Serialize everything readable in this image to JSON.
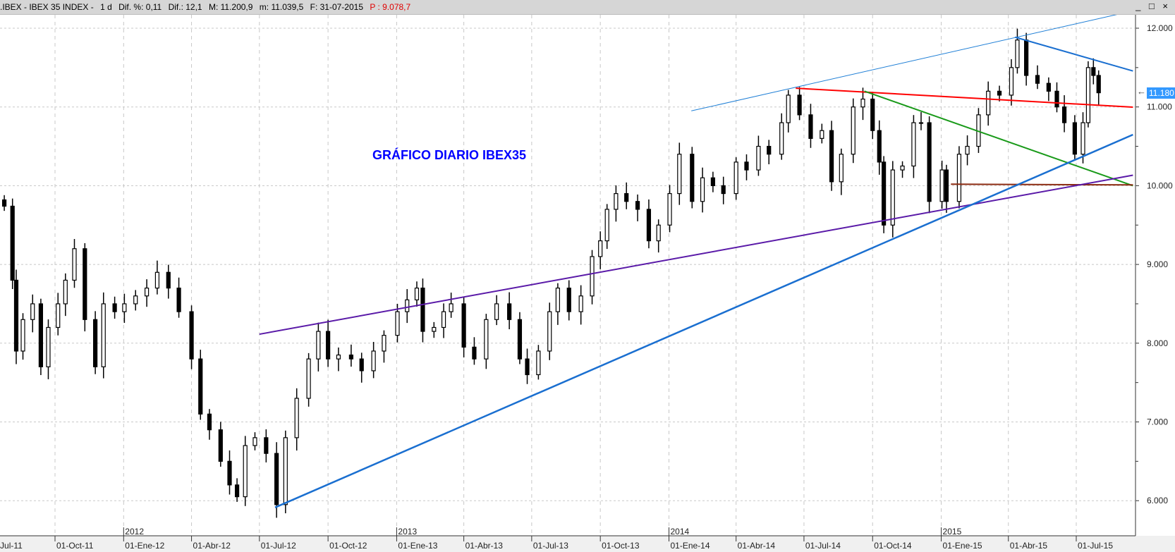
{
  "header": {
    "symbol": ".IBEX - IBEX 35 INDEX -",
    "period": "1 d",
    "change_pct": "Dif. %: 0,11",
    "change": "Dif.: 12,1",
    "high": "M: 11.200,9",
    "low": "m: 11.039,5",
    "date": "F: 31-07-2015",
    "p_value": "P : 9.078,7",
    "window_controls": "_ □ ×"
  },
  "colors": {
    "up_candle": "#ffffff",
    "down_candle": "#000000",
    "price_tag": "#3399ff",
    "caption": "#0000ff",
    "p_value": "#e00000"
  },
  "chart_data": {
    "type": "candlestick",
    "title": "GRÁFICO DIARIO IBEX35",
    "ylim": [
      5700,
      12300
    ],
    "y_ticks": [
      "6.000",
      "7.000",
      "8.000",
      "9.000",
      "10.000",
      "11.000",
      "12.000"
    ],
    "y_tick_values": [
      6000,
      7000,
      8000,
      9000,
      10000,
      11000,
      12000
    ],
    "x_ticks": [
      {
        "date": "2011-07-01",
        "label": "01-Jul-11"
      },
      {
        "date": "2011-10-01",
        "label": "01-Oct-11"
      },
      {
        "date": "2012-01-01",
        "label": "01-Ene-12"
      },
      {
        "date": "2012-04-01",
        "label": "01-Abr-12"
      },
      {
        "date": "2012-07-01",
        "label": "01-Jul-12"
      },
      {
        "date": "2012-10-01",
        "label": "01-Oct-12"
      },
      {
        "date": "2013-01-01",
        "label": "01-Ene-13"
      },
      {
        "date": "2013-04-01",
        "label": "01-Abr-13"
      },
      {
        "date": "2013-07-01",
        "label": "01-Jul-13"
      },
      {
        "date": "2013-10-01",
        "label": "01-Oct-13"
      },
      {
        "date": "2014-01-01",
        "label": "01-Ene-14"
      },
      {
        "date": "2014-04-01",
        "label": "01-Abr-14"
      },
      {
        "date": "2014-07-01",
        "label": "01-Jul-14"
      },
      {
        "date": "2014-10-01",
        "label": "01-Oct-14"
      },
      {
        "date": "2015-01-01",
        "label": "01-Ene-15"
      },
      {
        "date": "2015-04-01",
        "label": "01-Abr-15"
      },
      {
        "date": "2015-07-01",
        "label": "01-Jul-15"
      }
    ],
    "year_labels": [
      {
        "date": "2012-01-01",
        "label": "2012"
      },
      {
        "date": "2013-01-01",
        "label": "2013"
      },
      {
        "date": "2014-01-01",
        "label": "2014"
      },
      {
        "date": "2015-01-01",
        "label": "2015"
      }
    ],
    "grid": true,
    "last_price_label": "11.180,7",
    "last_price": 11180.7,
    "series": [
      [
        "2011-07-25",
        9740
      ],
      [
        "2011-08-05",
        8800
      ],
      [
        "2011-08-10",
        7900
      ],
      [
        "2011-08-19",
        8300
      ],
      [
        "2011-09-01",
        8500
      ],
      [
        "2011-09-12",
        7700
      ],
      [
        "2011-09-22",
        8200
      ],
      [
        "2011-10-05",
        8500
      ],
      [
        "2011-10-15",
        8800
      ],
      [
        "2011-10-27",
        9200
      ],
      [
        "2011-11-10",
        8300
      ],
      [
        "2011-11-24",
        7700
      ],
      [
        "2011-12-05",
        8500
      ],
      [
        "2011-12-20",
        8400
      ],
      [
        "2012-01-02",
        8500
      ],
      [
        "2012-01-17",
        8600
      ],
      [
        "2012-02-01",
        8700
      ],
      [
        "2012-02-15",
        8900
      ],
      [
        "2012-03-01",
        8700
      ],
      [
        "2012-03-15",
        8400
      ],
      [
        "2012-04-01",
        7800
      ],
      [
        "2012-04-13",
        7100
      ],
      [
        "2012-04-25",
        6900
      ],
      [
        "2012-05-10",
        6500
      ],
      [
        "2012-05-22",
        6200
      ],
      [
        "2012-06-01",
        6050
      ],
      [
        "2012-06-12",
        6700
      ],
      [
        "2012-06-25",
        6800
      ],
      [
        "2012-07-10",
        6600
      ],
      [
        "2012-07-24",
        5950
      ],
      [
        "2012-08-05",
        6800
      ],
      [
        "2012-08-20",
        7300
      ],
      [
        "2012-09-05",
        7800
      ],
      [
        "2012-09-18",
        8150
      ],
      [
        "2012-10-01",
        7800
      ],
      [
        "2012-10-15",
        7850
      ],
      [
        "2012-11-01",
        7800
      ],
      [
        "2012-11-15",
        7650
      ],
      [
        "2012-12-01",
        7900
      ],
      [
        "2012-12-15",
        8100
      ],
      [
        "2013-01-02",
        8400
      ],
      [
        "2013-01-15",
        8550
      ],
      [
        "2013-01-28",
        8700
      ],
      [
        "2013-02-05",
        8150
      ],
      [
        "2013-02-20",
        8200
      ],
      [
        "2013-03-05",
        8400
      ],
      [
        "2013-03-15",
        8500
      ],
      [
        "2013-04-01",
        7950
      ],
      [
        "2013-04-15",
        7800
      ],
      [
        "2013-05-01",
        8300
      ],
      [
        "2013-05-15",
        8500
      ],
      [
        "2013-06-01",
        8300
      ],
      [
        "2013-06-15",
        7800
      ],
      [
        "2013-06-25",
        7600
      ],
      [
        "2013-07-10",
        7900
      ],
      [
        "2013-07-25",
        8400
      ],
      [
        "2013-08-05",
        8700
      ],
      [
        "2013-08-20",
        8400
      ],
      [
        "2013-09-05",
        8600
      ],
      [
        "2013-09-20",
        9100
      ],
      [
        "2013-10-01",
        9300
      ],
      [
        "2013-10-10",
        9700
      ],
      [
        "2013-10-22",
        9900
      ],
      [
        "2013-11-05",
        9800
      ],
      [
        "2013-11-20",
        9700
      ],
      [
        "2013-12-05",
        9300
      ],
      [
        "2013-12-18",
        9500
      ],
      [
        "2014-01-02",
        9900
      ],
      [
        "2014-01-15",
        10400
      ],
      [
        "2014-02-01",
        9800
      ],
      [
        "2014-02-15",
        10100
      ],
      [
        "2014-03-01",
        10000
      ],
      [
        "2014-03-15",
        9900
      ],
      [
        "2014-04-01",
        10300
      ],
      [
        "2014-04-15",
        10200
      ],
      [
        "2014-05-01",
        10500
      ],
      [
        "2014-05-15",
        10400
      ],
      [
        "2014-06-01",
        10800
      ],
      [
        "2014-06-10",
        11150
      ],
      [
        "2014-06-25",
        10900
      ],
      [
        "2014-07-10",
        10600
      ],
      [
        "2014-07-25",
        10700
      ],
      [
        "2014-08-07",
        10050
      ],
      [
        "2014-08-20",
        10400
      ],
      [
        "2014-09-05",
        11000
      ],
      [
        "2014-09-18",
        11100
      ],
      [
        "2014-10-01",
        10700
      ],
      [
        "2014-10-10",
        10300
      ],
      [
        "2014-10-16",
        9500
      ],
      [
        "2014-10-28",
        10200
      ],
      [
        "2014-11-10",
        10250
      ],
      [
        "2014-11-25",
        10800
      ],
      [
        "2014-12-05",
        10800
      ],
      [
        "2014-12-16",
        9800
      ],
      [
        "2015-01-02",
        10200
      ],
      [
        "2015-01-08",
        9800
      ],
      [
        "2015-01-25",
        10400
      ],
      [
        "2015-02-05",
        10500
      ],
      [
        "2015-02-20",
        10900
      ],
      [
        "2015-03-05",
        11200
      ],
      [
        "2015-03-20",
        11150
      ],
      [
        "2015-04-05",
        11500
      ],
      [
        "2015-04-13",
        11850
      ],
      [
        "2015-04-25",
        11400
      ],
      [
        "2015-05-10",
        11300
      ],
      [
        "2015-05-25",
        11200
      ],
      [
        "2015-06-05",
        11000
      ],
      [
        "2015-06-15",
        10800
      ],
      [
        "2015-06-29",
        10400
      ],
      [
        "2015-07-10",
        10800
      ],
      [
        "2015-07-17",
        11500
      ],
      [
        "2015-07-24",
        11400
      ],
      [
        "2015-07-31",
        11180
      ]
    ],
    "trendlines": [
      {
        "color": "#1f7fd6",
        "width": 1,
        "from": [
          "2014-01-31",
          10950
        ],
        "to": [
          "2015-09-15",
          12220
        ]
      },
      {
        "color": "#1a6fd0",
        "width": 2,
        "from": [
          "2015-04-10",
          11886
        ],
        "to": [
          "2015-09-15",
          11457
        ]
      },
      {
        "color": "#ff0000",
        "width": 2,
        "from": [
          "2014-06-20",
          11238
        ],
        "to": [
          "2015-09-15",
          10997
        ]
      },
      {
        "color": "#1a9a1a",
        "width": 2,
        "from": [
          "2014-09-20",
          11200
        ],
        "to": [
          "2015-09-15",
          10000
        ]
      },
      {
        "color": "#8b2a10",
        "width": 2,
        "from": [
          "2015-01-14",
          10019
        ],
        "to": [
          "2015-09-15",
          10010
        ]
      },
      {
        "color": "#5a1aa8",
        "width": 2,
        "from": [
          "2012-07-01",
          8114
        ],
        "to": [
          "2015-09-15",
          10133
        ]
      },
      {
        "color": "#1a6fd0",
        "width": 2.5,
        "from": [
          "2012-07-22",
          5914
        ],
        "to": [
          "2015-09-15",
          10648
        ]
      }
    ]
  }
}
